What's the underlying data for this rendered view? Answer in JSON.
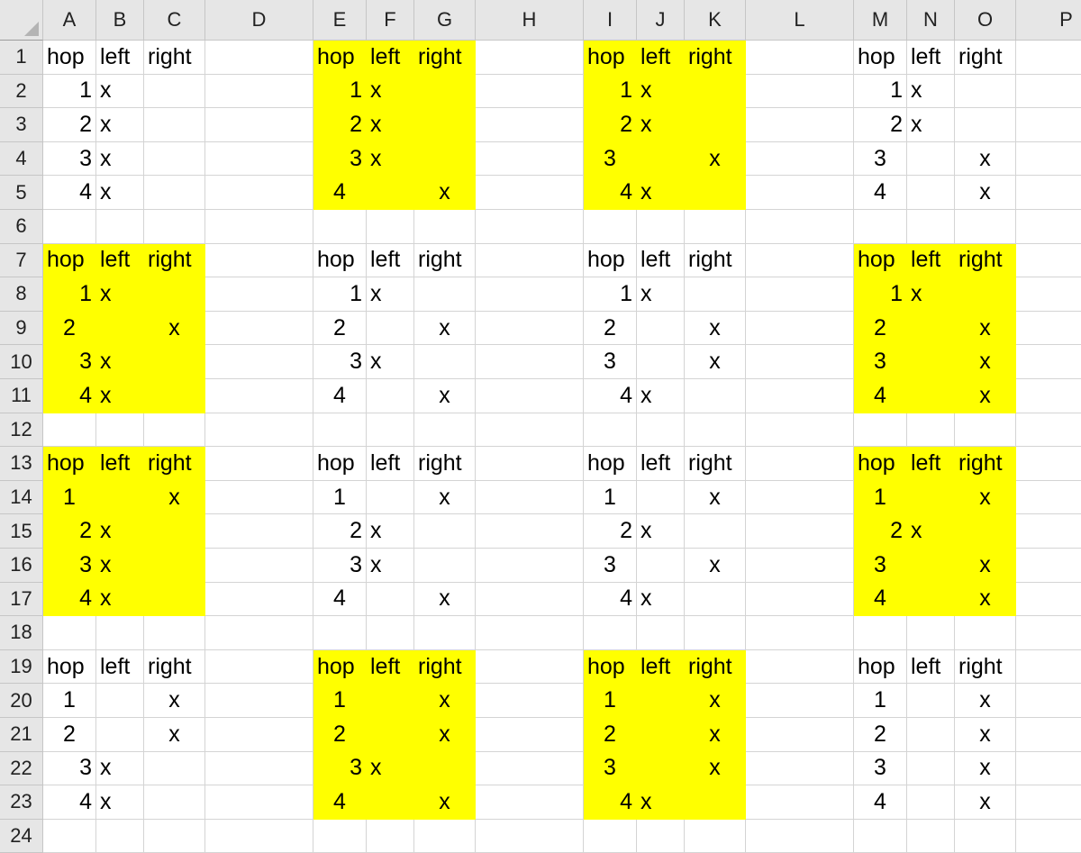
{
  "columns": [
    "A",
    "B",
    "C",
    "D",
    "E",
    "F",
    "G",
    "H",
    "I",
    "J",
    "K",
    "L",
    "M",
    "N",
    "O",
    "P"
  ],
  "rows": [
    1,
    2,
    3,
    4,
    5,
    6,
    7,
    8,
    9,
    10,
    11,
    12,
    13,
    14,
    15,
    16,
    17,
    18,
    19,
    20,
    21,
    22,
    23,
    24
  ],
  "header_label": "hop",
  "left_label": "left",
  "right_label": "right",
  "mark": "x",
  "highlight_color": "#ffff00",
  "blocks": [
    {
      "cell": "A1",
      "highlighted": false,
      "hops": [
        "1",
        "2",
        "3",
        "4"
      ],
      "sides": [
        "left",
        "left",
        "left",
        "left"
      ]
    },
    {
      "cell": "E1",
      "highlighted": true,
      "hops": [
        "1",
        "2",
        "3",
        "4"
      ],
      "sides": [
        "left",
        "left",
        "left",
        "right"
      ]
    },
    {
      "cell": "I1",
      "highlighted": true,
      "hops": [
        "1",
        "2",
        "3",
        "4"
      ],
      "sides": [
        "left",
        "left",
        "right",
        "left"
      ]
    },
    {
      "cell": "M1",
      "highlighted": false,
      "hops": [
        "1",
        "2",
        "3",
        "4"
      ],
      "sides": [
        "left",
        "left",
        "right",
        "right"
      ]
    },
    {
      "cell": "A7",
      "highlighted": true,
      "hops": [
        "1",
        "2",
        "3",
        "4"
      ],
      "sides": [
        "left",
        "right",
        "left",
        "left"
      ]
    },
    {
      "cell": "E7",
      "highlighted": false,
      "hops": [
        "1",
        "2",
        "3",
        "4"
      ],
      "sides": [
        "left",
        "right",
        "left",
        "right"
      ]
    },
    {
      "cell": "I7",
      "highlighted": false,
      "hops": [
        "1",
        "2",
        "3",
        "4"
      ],
      "sides": [
        "left",
        "right",
        "right",
        "left"
      ]
    },
    {
      "cell": "M7",
      "highlighted": true,
      "hops": [
        "1",
        "2",
        "3",
        "4"
      ],
      "sides": [
        "left",
        "right",
        "right",
        "right"
      ]
    },
    {
      "cell": "A13",
      "highlighted": true,
      "hops": [
        "1",
        "2",
        "3",
        "4"
      ],
      "sides": [
        "right",
        "left",
        "left",
        "left"
      ]
    },
    {
      "cell": "E13",
      "highlighted": false,
      "hops": [
        "1",
        "2",
        "3",
        "4"
      ],
      "sides": [
        "right",
        "left",
        "left",
        "right"
      ]
    },
    {
      "cell": "I13",
      "highlighted": false,
      "hops": [
        "1",
        "2",
        "3",
        "4"
      ],
      "sides": [
        "right",
        "left",
        "right",
        "left"
      ]
    },
    {
      "cell": "M13",
      "highlighted": true,
      "hops": [
        "1",
        "2",
        "3",
        "4"
      ],
      "sides": [
        "right",
        "left",
        "right",
        "right"
      ]
    },
    {
      "cell": "A19",
      "highlighted": false,
      "hops": [
        "1",
        "2",
        "3",
        "4"
      ],
      "sides": [
        "right",
        "right",
        "left",
        "left"
      ]
    },
    {
      "cell": "E19",
      "highlighted": true,
      "hops": [
        "1",
        "2",
        "3",
        "4"
      ],
      "sides": [
        "right",
        "right",
        "left",
        "right"
      ]
    },
    {
      "cell": "I19",
      "highlighted": true,
      "hops": [
        "1",
        "2",
        "3",
        "4"
      ],
      "sides": [
        "right",
        "right",
        "right",
        "left"
      ]
    },
    {
      "cell": "M19",
      "highlighted": false,
      "hops": [
        "1",
        "2",
        "3",
        "4"
      ],
      "sides": [
        "right",
        "right",
        "right",
        "right"
      ]
    }
  ]
}
